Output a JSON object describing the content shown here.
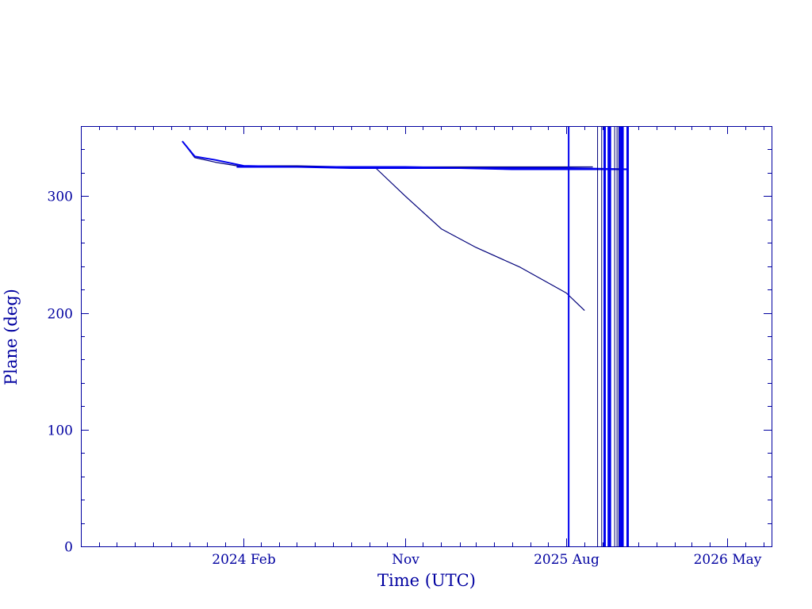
{
  "chart_data": {
    "type": "line",
    "title": "",
    "xlabel": "Time (UTC)",
    "ylabel": "Plane (deg)",
    "x_axis": {
      "type": "date",
      "range": [
        "2023-05-01",
        "2026-07-15"
      ],
      "tick_labels": [
        {
          "date": "2024-02-01",
          "label": "2024 Feb"
        },
        {
          "date": "2024-11-01",
          "label": "Nov"
        },
        {
          "date": "2025-08-01",
          "label": "2025 Aug"
        },
        {
          "date": "2026-05-01",
          "label": "2026 May"
        }
      ],
      "minor_tick_months": 1
    },
    "y_axis": {
      "range": [
        0,
        360
      ],
      "major_ticks": [
        0,
        100,
        200,
        300
      ],
      "tick_labels": [
        "0",
        "100",
        "200",
        "300"
      ],
      "minor_step": 20
    },
    "grid": false,
    "legend": "none",
    "colors": {
      "axes": "#0000a0",
      "series_dark": "#00007a",
      "series_bright": "#0000ee"
    },
    "series": [
      {
        "color": "series_dark",
        "x": [
          "2023-10-20",
          "2023-11-10",
          "2023-12-15",
          "2024-02-01",
          "2024-05-01",
          "2024-08-01",
          "2024-09-10",
          "2024-11-01",
          "2025-01-01",
          "2025-03-01",
          "2025-05-15",
          "2025-08-01",
          "2025-09-01"
        ],
        "y": [
          347,
          334,
          331,
          326,
          326,
          325,
          325,
          300,
          272,
          256,
          239,
          217,
          202
        ]
      },
      {
        "color": "series_dark",
        "x": [
          "2023-10-20",
          "2023-11-10",
          "2023-12-15",
          "2024-02-01",
          "2024-05-01",
          "2024-08-01",
          "2024-11-01",
          "2025-02-01",
          "2025-05-01",
          "2025-08-01",
          "2025-09-15"
        ],
        "y": [
          347,
          333,
          329,
          325,
          325,
          325,
          325,
          325,
          325,
          325,
          325
        ]
      },
      {
        "color": "series_bright",
        "x": [
          "2023-10-20",
          "2023-11-10",
          "2023-12-15",
          "2024-02-01",
          "2024-05-01",
          "2024-08-01",
          "2024-11-01",
          "2025-02-01",
          "2025-05-01",
          "2025-08-01",
          "2025-11-15"
        ],
        "y": [
          347,
          334,
          331,
          326,
          325,
          325,
          325,
          324,
          324,
          324,
          323
        ]
      },
      {
        "color": "series_bright",
        "x": [
          "2024-01-20",
          "2024-05-01",
          "2024-08-01",
          "2024-11-01",
          "2025-02-01",
          "2025-05-01",
          "2025-08-01",
          "2025-11-15"
        ],
        "y": [
          325,
          325,
          324,
          324,
          324,
          323,
          323,
          323
        ]
      }
    ],
    "vertical_markers": [
      {
        "x": "2025-08-05",
        "color": "series_bright",
        "weight": "medium"
      },
      {
        "x": "2025-09-23",
        "color": "series_dark",
        "weight": "thin"
      },
      {
        "x": "2025-09-30",
        "color": "series_dark",
        "weight": "thin"
      },
      {
        "x": "2025-10-05",
        "color": "series_bright",
        "weight": "heavy"
      },
      {
        "x": "2025-10-12",
        "color": "series_bright",
        "weight": "heavy"
      },
      {
        "x": "2025-10-14",
        "color": "series_bright",
        "weight": "heavy"
      },
      {
        "x": "2025-10-22",
        "color": "series_dark",
        "weight": "thin"
      },
      {
        "x": "2025-10-26",
        "color": "series_dark",
        "weight": "thin"
      },
      {
        "x": "2025-10-29",
        "color": "series_dark",
        "weight": "thin"
      },
      {
        "x": "2025-10-31",
        "color": "series_bright",
        "weight": "medium"
      },
      {
        "x": "2025-11-03",
        "color": "series_bright",
        "weight": "heavy"
      },
      {
        "x": "2025-11-05",
        "color": "series_bright",
        "weight": "medium"
      },
      {
        "x": "2025-11-13",
        "color": "series_bright",
        "weight": "heavy"
      }
    ]
  }
}
